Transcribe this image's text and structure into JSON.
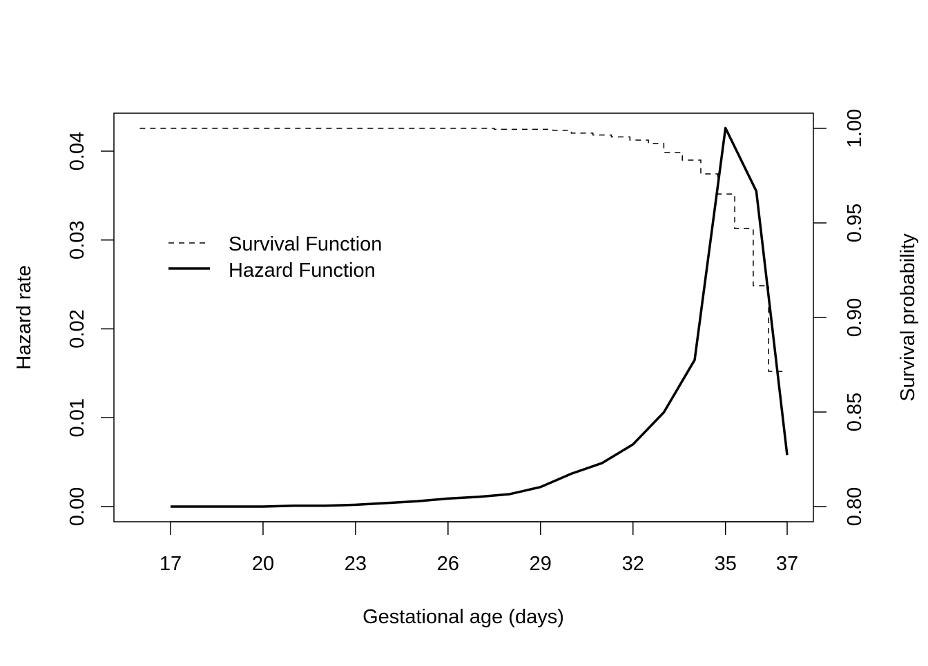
{
  "chart_data": {
    "type": "line",
    "title": "",
    "xlabel": "Gestational age (days)",
    "ylabel_left": "Hazard rate",
    "ylabel_right": "Survival probability",
    "xlim": [
      15.2,
      37.8
    ],
    "ylim_left": [
      -0.0016,
      0.0444
    ],
    "ylim_right": [
      0.792,
      1.008
    ],
    "x_ticks": [
      17,
      20,
      23,
      26,
      29,
      32,
      35,
      37
    ],
    "y_ticks_left": [
      "0.00",
      "0.01",
      "0.02",
      "0.03",
      "0.04"
    ],
    "y_tick_values_left": [
      0,
      0.01,
      0.02,
      0.03,
      0.04
    ],
    "y_ticks_right": [
      "0.80",
      "0.85",
      "0.90",
      "0.95",
      "1.00"
    ],
    "y_tick_values_right": [
      0.8,
      0.85,
      0.9,
      0.95,
      1.0
    ],
    "grid": false,
    "legend_position": "upper-left",
    "series": [
      {
        "name": "Survival Function",
        "axis": "right",
        "style": "dashed-step",
        "x": [
          16,
          27.5,
          29.4,
          30.0,
          30.7,
          31.3,
          31.9,
          32.5,
          33.0,
          33.6,
          34.2,
          34.75,
          35.3,
          35.9,
          36.4,
          37
        ],
        "y": [
          1.0,
          0.9995,
          0.999,
          0.9975,
          0.9965,
          0.9955,
          0.9938,
          0.992,
          0.9872,
          0.9832,
          0.9759,
          0.9653,
          0.947,
          0.9168,
          0.8715,
          0.8715
        ]
      },
      {
        "name": "Hazard Function",
        "axis": "left",
        "style": "solid",
        "x": [
          17,
          18,
          19,
          20,
          21,
          22,
          23,
          24,
          25,
          26,
          27,
          28,
          29,
          30,
          31,
          32,
          33,
          34,
          35,
          36,
          37
        ],
        "y": [
          0.0,
          0.0,
          0.0,
          0.0,
          0.0001,
          0.0001,
          0.0002,
          0.0004,
          0.0006,
          0.0009,
          0.0011,
          0.0014,
          0.0022,
          0.0037,
          0.0049,
          0.007,
          0.0106,
          0.0165,
          0.0426,
          0.0355,
          0.0058
        ]
      }
    ]
  }
}
